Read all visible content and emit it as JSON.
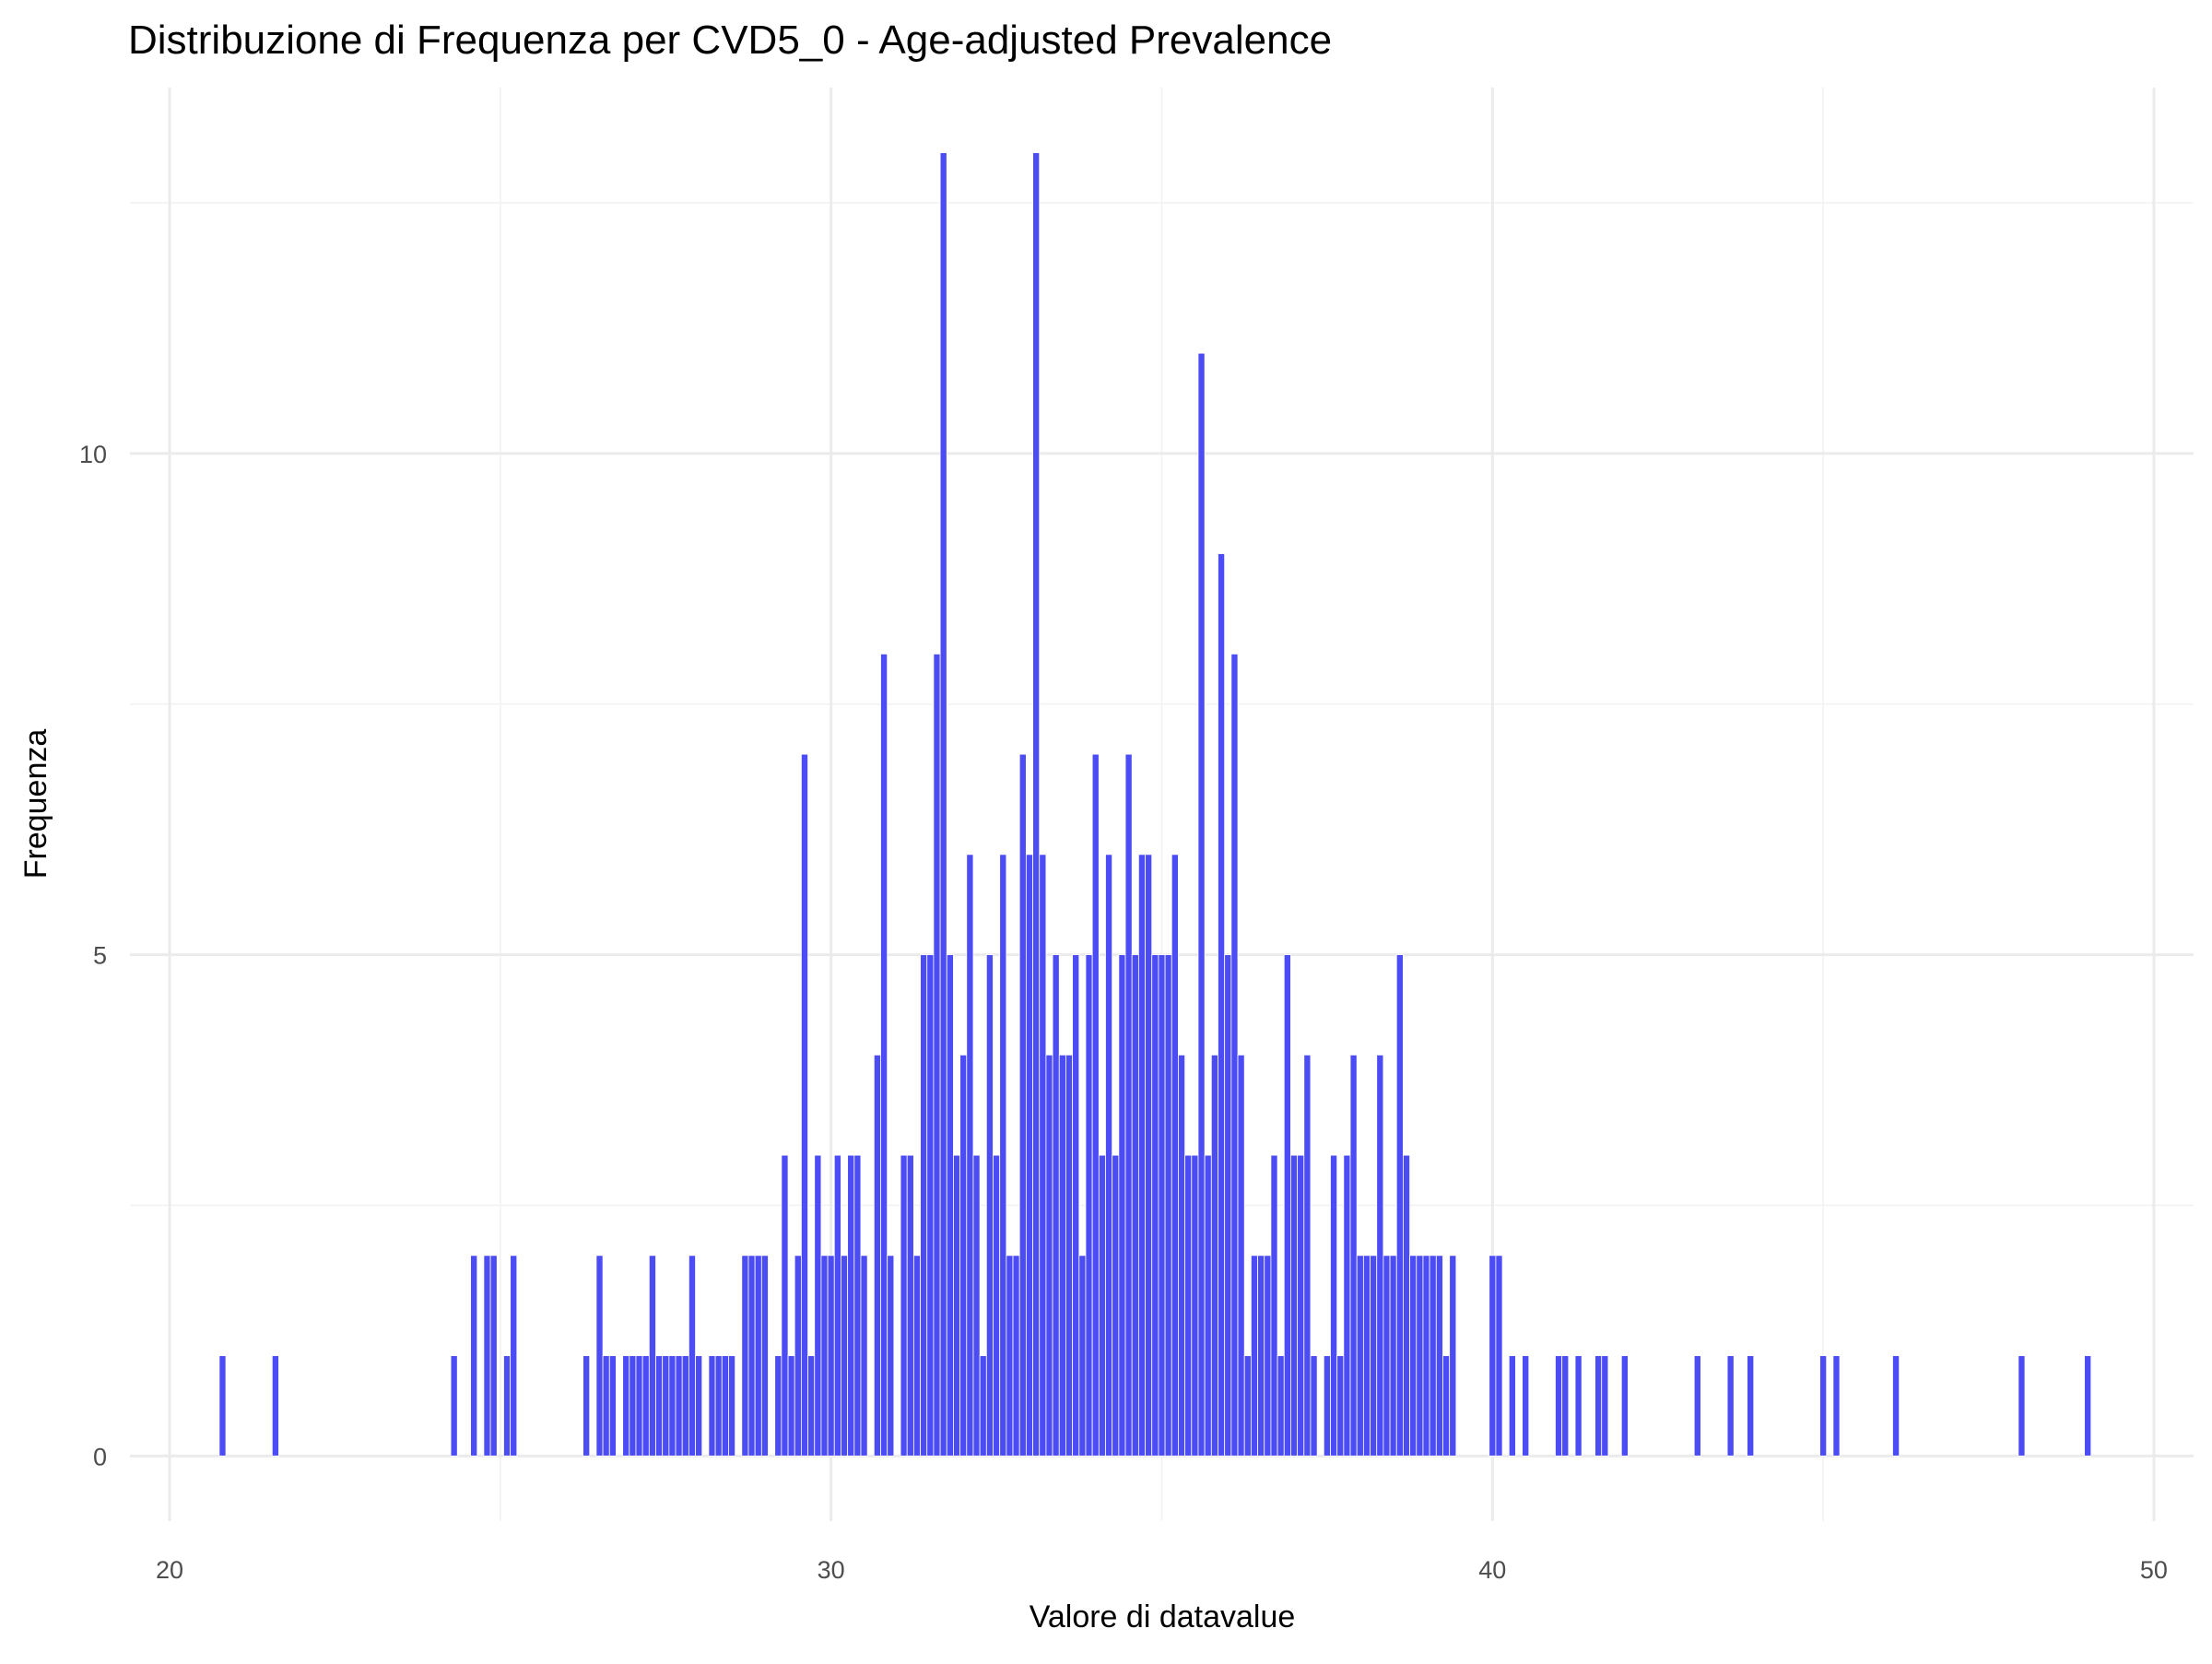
{
  "chart_data": {
    "type": "histogram",
    "title": "Distribuzione di Frequenza per CVD5_0 - Age-adjusted Prevalence",
    "x_label": "Valore di datavalue",
    "y_label": "Frequenza",
    "color": "#4c4cf5",
    "grid": true,
    "xlim": [
      19.4,
      50.6
    ],
    "ylim": [
      -0.65,
      13.65
    ],
    "xticks": [
      20,
      30,
      40,
      50
    ],
    "yticks": [
      0,
      5,
      10
    ],
    "x_minor_ticks": [
      25,
      35,
      45
    ],
    "y_minor_ticks": [
      2.5,
      7.5,
      12.5
    ],
    "bins": [
      20.75,
      20.85,
      20.95,
      21.05,
      21.15,
      21.25,
      21.35,
      21.45,
      21.55,
      21.65,
      21.75,
      21.85,
      21.95,
      22.05,
      22.15,
      22.25,
      22.35,
      22.45,
      22.55,
      22.65,
      22.75,
      22.85,
      22.95,
      23.05,
      23.15,
      23.25,
      23.35,
      23.45,
      23.55,
      23.65,
      23.75,
      23.85,
      23.95,
      24.05,
      24.15,
      24.25,
      24.35,
      24.45,
      24.55,
      24.65,
      24.75,
      24.85,
      24.95,
      25.05,
      25.15,
      25.25,
      25.35,
      25.45,
      25.55,
      25.65,
      25.75,
      25.85,
      25.95,
      26.05,
      26.15,
      26.25,
      26.35,
      26.45,
      26.55,
      26.65,
      26.75,
      26.85,
      26.95,
      27.05,
      27.15,
      27.25,
      27.35,
      27.45,
      27.55,
      27.65,
      27.75,
      27.85,
      27.95,
      28.05,
      28.15,
      28.25,
      28.35,
      28.45,
      28.55,
      28.65,
      28.75,
      28.85,
      28.95,
      29.05,
      29.15,
      29.25,
      29.35,
      29.45,
      29.55,
      29.65,
      29.75,
      29.85,
      29.95,
      30.05,
      30.15,
      30.25,
      30.35,
      30.45,
      30.55,
      30.65,
      30.75,
      30.85,
      30.95,
      31.05,
      31.15,
      31.25,
      31.35,
      31.45,
      31.55,
      31.65,
      31.75,
      31.85,
      31.95,
      32.05,
      32.15,
      32.25,
      32.35,
      32.45,
      32.55,
      32.65,
      32.75,
      32.85,
      32.95,
      33.05,
      33.15,
      33.25,
      33.35,
      33.45,
      33.55,
      33.65,
      33.75,
      33.85,
      33.95,
      34.05,
      34.15,
      34.25,
      34.35,
      34.45,
      34.55,
      34.65,
      34.75,
      34.85,
      34.95,
      35.05,
      35.15,
      35.25,
      35.35,
      35.45,
      35.55,
      35.65,
      35.75,
      35.85,
      35.95,
      36.05,
      36.15,
      36.25,
      36.35,
      36.45,
      36.55,
      36.65,
      36.75,
      36.85,
      36.95,
      37.05,
      37.15,
      37.25,
      37.35,
      37.45,
      37.55,
      37.65,
      37.75,
      37.85,
      37.95,
      38.05,
      38.15,
      38.25,
      38.35,
      38.45,
      38.55,
      38.65,
      38.75,
      38.85,
      38.95,
      39.05,
      39.15,
      39.25,
      39.35,
      39.45,
      39.55,
      39.65,
      39.75,
      39.85,
      39.95,
      40.05,
      40.15,
      40.25,
      40.35,
      40.45,
      40.55,
      40.65,
      40.75,
      40.85,
      40.95,
      41.05,
      41.15,
      41.25,
      41.35,
      41.45,
      41.55,
      41.65,
      41.75,
      41.85,
      41.95,
      42.05,
      42.15,
      42.25,
      42.35,
      42.45,
      42.55,
      42.65,
      42.75,
      42.85,
      42.95,
      43.05,
      43.15,
      43.25,
      43.35,
      43.45,
      43.55,
      43.65,
      43.75,
      43.85,
      43.95,
      44.05,
      44.15,
      44.25,
      44.35,
      44.45,
      44.55,
      44.65,
      44.75,
      44.85,
      44.95,
      45.05,
      45.15,
      45.25,
      45.35,
      45.45,
      45.55,
      45.65,
      45.75,
      45.85,
      45.95,
      46.05,
      46.15,
      46.25,
      46.35,
      46.45,
      46.55,
      46.65,
      46.75,
      46.85,
      46.95,
      47.05,
      47.15,
      47.25,
      47.35,
      47.45,
      47.55,
      47.65,
      47.75,
      47.85,
      47.95,
      48.05,
      48.15,
      48.25,
      48.35,
      48.45,
      48.55,
      48.65,
      48.75,
      48.85,
      48.95,
      49.05
    ],
    "counts": [
      1,
      0,
      0,
      0,
      0,
      0,
      0,
      0,
      1,
      0,
      0,
      0,
      0,
      0,
      0,
      0,
      0,
      0,
      0,
      0,
      0,
      0,
      0,
      0,
      0,
      0,
      0,
      0,
      0,
      0,
      0,
      0,
      0,
      0,
      0,
      1,
      0,
      0,
      2,
      0,
      2,
      2,
      0,
      1,
      2,
      0,
      0,
      0,
      0,
      0,
      0,
      0,
      0,
      0,
      0,
      1,
      0,
      2,
      1,
      1,
      0,
      1,
      1,
      1,
      1,
      2,
      1,
      1,
      1,
      1,
      1,
      2,
      1,
      0,
      1,
      1,
      1,
      1,
      0,
      2,
      2,
      2,
      2,
      0,
      1,
      3,
      1,
      2,
      7,
      1,
      3,
      2,
      2,
      3,
      2,
      3,
      3,
      2,
      0,
      4,
      8,
      2,
      0,
      3,
      3,
      2,
      5,
      5,
      8,
      13,
      5,
      3,
      4,
      6,
      3,
      1,
      5,
      3,
      6,
      2,
      2,
      7,
      6,
      13,
      6,
      4,
      5,
      4,
      4,
      5,
      2,
      5,
      7,
      3,
      6,
      3,
      5,
      7,
      5,
      6,
      6,
      5,
      5,
      5,
      6,
      4,
      3,
      3,
      11,
      3,
      4,
      9,
      5,
      8,
      4,
      1,
      2,
      2,
      2,
      3,
      1,
      5,
      3,
      3,
      4,
      1,
      0,
      1,
      3,
      1,
      3,
      4,
      2,
      2,
      2,
      4,
      2,
      2,
      5,
      3,
      2,
      2,
      2,
      2,
      2,
      1,
      2,
      0,
      0,
      0,
      0,
      0,
      2,
      2,
      0,
      1,
      0,
      1,
      0,
      0,
      0,
      0,
      1,
      1,
      0,
      1,
      0,
      0,
      1,
      1,
      0,
      0,
      1,
      0,
      0,
      0,
      0,
      0,
      0,
      0,
      0,
      0,
      0,
      1,
      0,
      0,
      0,
      0,
      1,
      0,
      0,
      1,
      0,
      0,
      0,
      0,
      0,
      0,
      0,
      0,
      0,
      0,
      1,
      0,
      1,
      0,
      0,
      0,
      0,
      0,
      0,
      0,
      0,
      1,
      0,
      0,
      0,
      0,
      0,
      0,
      0,
      0,
      0,
      0,
      0,
      0,
      0,
      0,
      0,
      0,
      0,
      0,
      1,
      0,
      0,
      0,
      0,
      0,
      0,
      0,
      0,
      0,
      1
    ]
  }
}
